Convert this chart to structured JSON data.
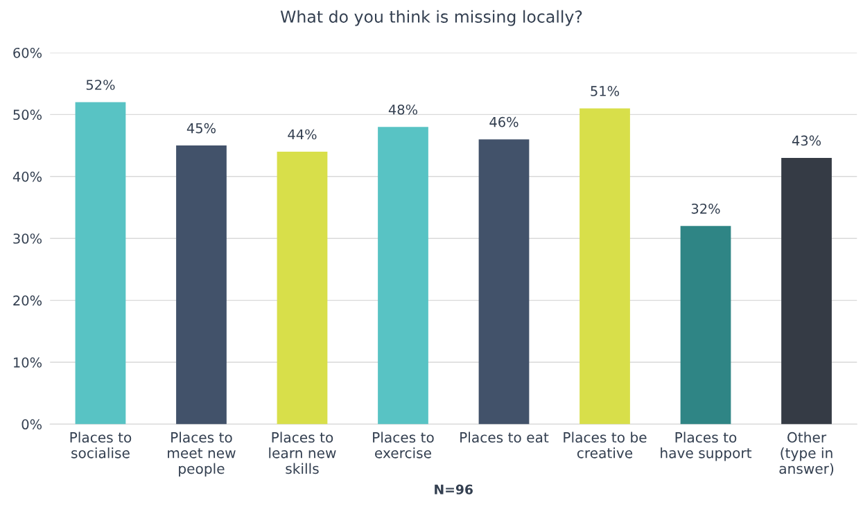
{
  "chart_data": {
    "type": "bar",
    "title": "What do you think is missing locally?",
    "xlabel": "N=96",
    "categories": [
      "Places to\nsocialise",
      "Places to\nmeet new\npeople",
      "Places to\nlearn new\nskills",
      "Places to\nexercise",
      "Places to eat",
      "Places to be\ncreative",
      "Places to\nhave support",
      "Other\n(type in\nanswer)"
    ],
    "values": [
      52,
      45,
      44,
      48,
      46,
      51,
      32,
      43
    ],
    "colors": [
      "#58c3c4",
      "#42526a",
      "#d8df4a",
      "#58c3c4",
      "#42526a",
      "#d8df4a",
      "#2f8585",
      "#353b45"
    ],
    "value_labels": [
      "52%",
      "45%",
      "44%",
      "48%",
      "46%",
      "51%",
      "32%",
      "43%"
    ],
    "ylim": [
      0,
      60
    ],
    "yticks": [
      {
        "value": 0,
        "label": "0%"
      },
      {
        "value": 10,
        "label": "10%"
      },
      {
        "value": 20,
        "label": "20%"
      },
      {
        "value": 30,
        "label": "30%"
      },
      {
        "value": 40,
        "label": "40%"
      },
      {
        "value": 50,
        "label": "50%"
      },
      {
        "value": 60,
        "label": "60%"
      }
    ],
    "grid": "y"
  }
}
